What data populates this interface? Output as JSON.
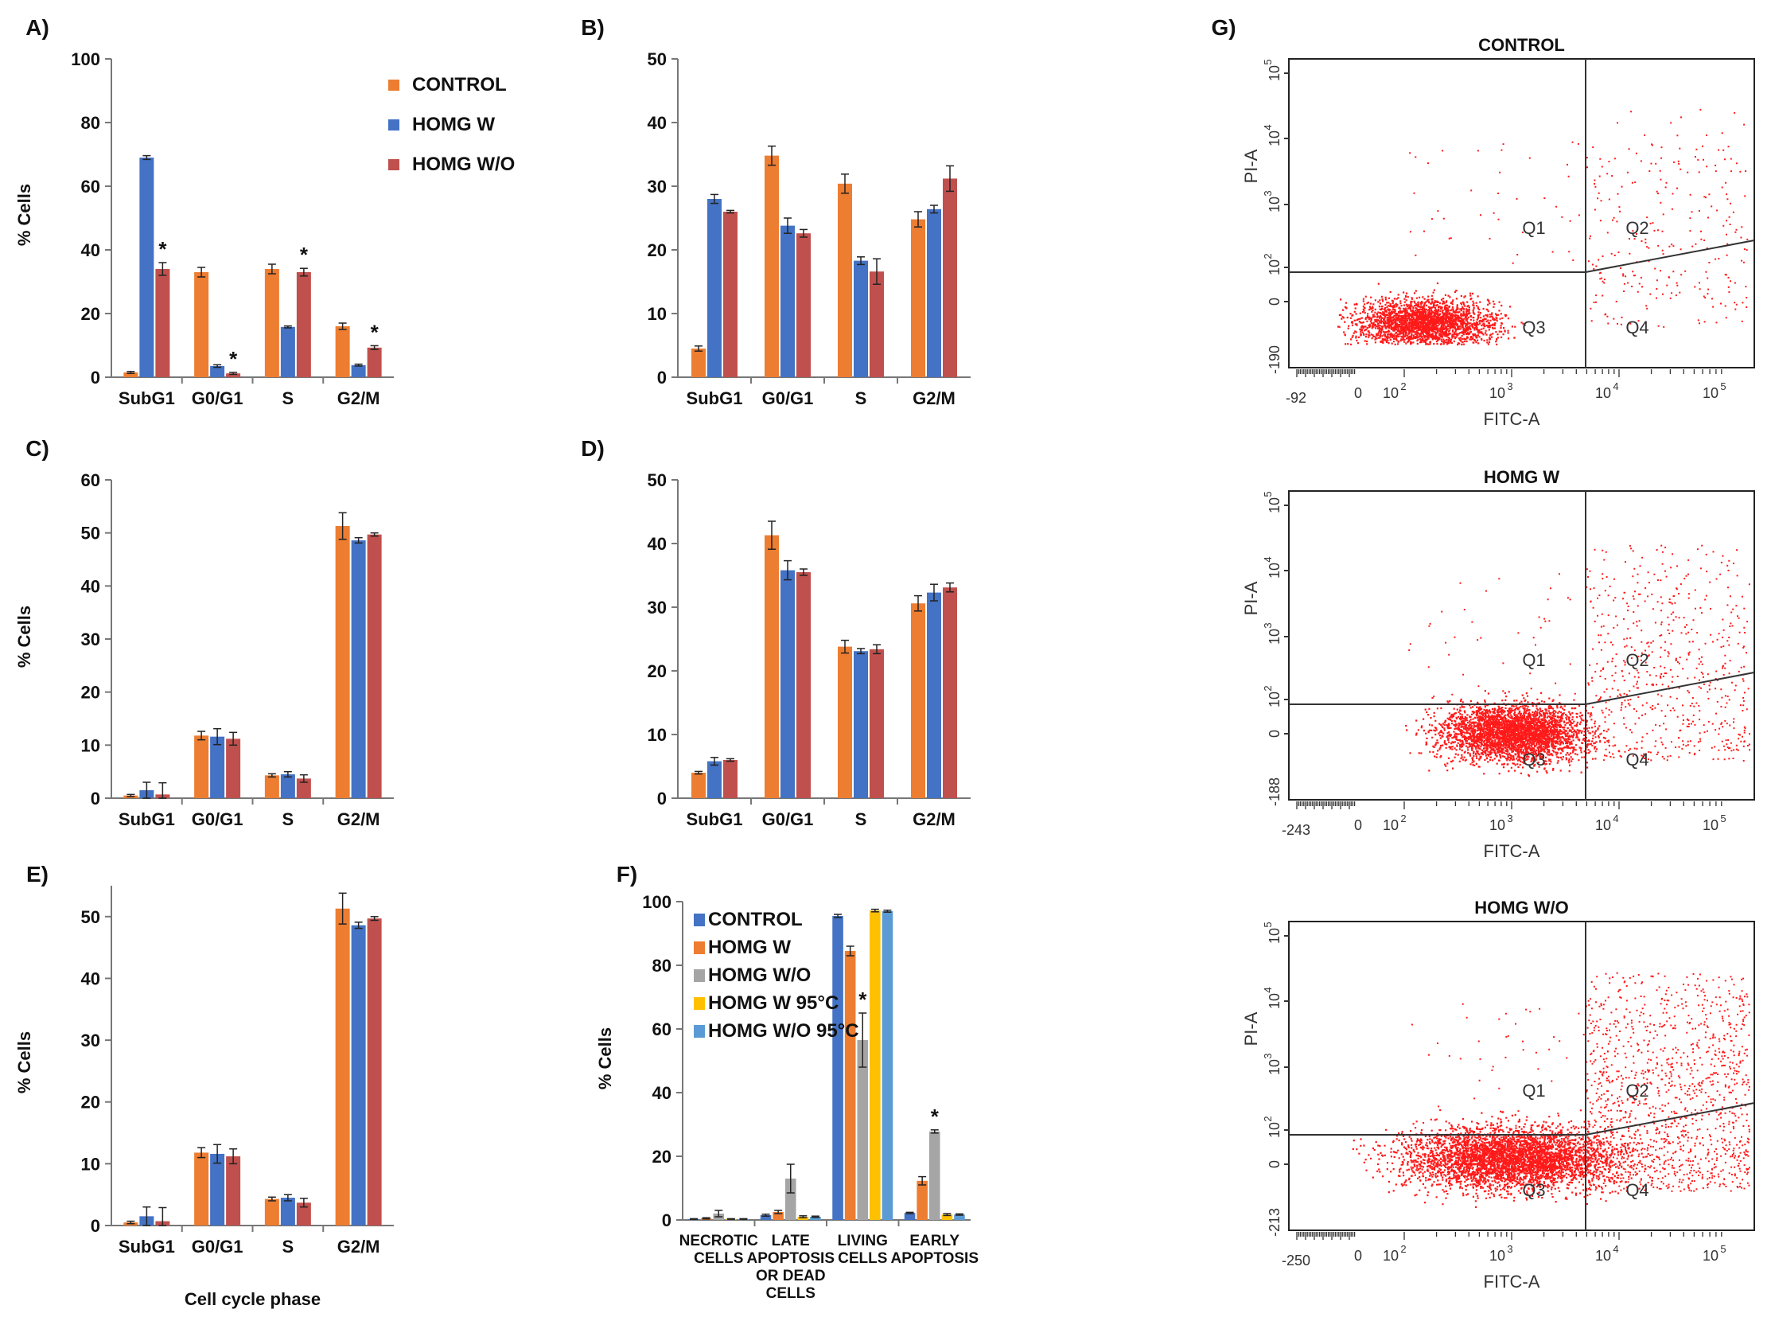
{
  "colors": {
    "control": "#ed7d31",
    "homg_w": "#4472c4",
    "homg_wo": "#c0504d",
    "f_control": "#4472c4",
    "f_homg_w": "#ed7d31",
    "f_homg_wo": "#a5a5a5",
    "f_homg_w95": "#ffc000",
    "f_homg_wo95": "#5b9bd5",
    "dots": "#ff1a1a"
  },
  "chart_data": [
    {
      "id": "A",
      "panel_label": "A)",
      "type": "bar",
      "title": "",
      "ylabel": "% Cells",
      "xlabel": "",
      "ylim": [
        0,
        100
      ],
      "yticks": [
        "0",
        "20",
        "40",
        "60",
        "80",
        "100"
      ],
      "categories": [
        "SubG1",
        "G0/G1",
        "S",
        "G2/M"
      ],
      "legend": [
        "CONTROL",
        "HOMG W",
        "HOMG W/O"
      ],
      "legend_position": "top-right",
      "series": [
        {
          "name": "CONTROL",
          "values": [
            1.5,
            33,
            34,
            16
          ],
          "errors": [
            0.3,
            1.5,
            1.5,
            1
          ]
        },
        {
          "name": "HOMG W",
          "values": [
            69,
            3.5,
            15.8,
            3.8
          ],
          "errors": [
            0.6,
            0.4,
            0.3,
            0.3
          ]
        },
        {
          "name": "HOMG W/O",
          "values": [
            34,
            1.2,
            33,
            9.3
          ],
          "errors": [
            2,
            0.3,
            1.2,
            0.6
          ]
        }
      ],
      "significance": [
        [
          2,
          0
        ],
        [
          2,
          1
        ],
        [
          2,
          2
        ],
        [
          2,
          3
        ]
      ]
    },
    {
      "id": "B",
      "panel_label": "B)",
      "type": "bar",
      "title": "",
      "ylabel": "",
      "xlabel": "",
      "ylim": [
        0,
        50
      ],
      "yticks": [
        "0",
        "10",
        "20",
        "30",
        "40",
        "50"
      ],
      "categories": [
        "SubG1",
        "G0/G1",
        "S",
        "G2/M"
      ],
      "series": [
        {
          "name": "CONTROL",
          "values": [
            4.5,
            34.8,
            30.4,
            24.8
          ],
          "errors": [
            0.4,
            1.5,
            1.5,
            1.2
          ]
        },
        {
          "name": "HOMG W",
          "values": [
            28,
            23.8,
            18.3,
            26.4
          ],
          "errors": [
            0.7,
            1.2,
            0.6,
            0.6
          ]
        },
        {
          "name": "HOMG W/O",
          "values": [
            26,
            22.6,
            16.6,
            31.2
          ],
          "errors": [
            0.2,
            0.6,
            2,
            2
          ]
        }
      ],
      "significance": []
    },
    {
      "id": "C",
      "panel_label": "C)",
      "type": "bar",
      "title": "",
      "ylabel": "% Cells",
      "xlabel": "",
      "ylim": [
        0,
        60
      ],
      "yticks": [
        "0",
        "10",
        "20",
        "30",
        "40",
        "50",
        "60"
      ],
      "categories": [
        "SubG1",
        "G0/G1",
        "S",
        "G2/M"
      ],
      "series": [
        {
          "name": "CONTROL",
          "values": [
            0.5,
            11.8,
            4.3,
            51.3
          ],
          "errors": [
            0.2,
            0.8,
            0.3,
            2.5
          ]
        },
        {
          "name": "HOMG W",
          "values": [
            1.5,
            11.6,
            4.5,
            48.6
          ],
          "errors": [
            1.5,
            1.5,
            0.5,
            0.5
          ]
        },
        {
          "name": "HOMG W/O",
          "values": [
            0.7,
            11.2,
            3.7,
            49.7
          ],
          "errors": [
            2.2,
            1.2,
            0.7,
            0.3
          ]
        }
      ],
      "significance": []
    },
    {
      "id": "D",
      "panel_label": "D)",
      "type": "bar",
      "title": "",
      "ylabel": "",
      "xlabel": "",
      "ylim": [
        0,
        50
      ],
      "yticks": [
        "0",
        "10",
        "20",
        "30",
        "40",
        "50"
      ],
      "categories": [
        "SubG1",
        "G0/G1",
        "S",
        "G2/M"
      ],
      "series": [
        {
          "name": "CONTROL",
          "values": [
            4,
            41.3,
            23.8,
            30.6
          ],
          "errors": [
            0.2,
            2.2,
            1,
            1.2
          ]
        },
        {
          "name": "HOMG W",
          "values": [
            5.8,
            35.8,
            23.1,
            32.3
          ],
          "errors": [
            0.6,
            1.5,
            0.4,
            1.3
          ]
        },
        {
          "name": "HOMG W/O",
          "values": [
            6,
            35.5,
            23.4,
            33.1
          ],
          "errors": [
            0.2,
            0.5,
            0.7,
            0.7
          ]
        }
      ],
      "significance": []
    },
    {
      "id": "E",
      "panel_label": "E)",
      "type": "bar",
      "title": "",
      "ylabel": "% Cells",
      "xlabel": "Cell cycle phase",
      "ylim": [
        0,
        55
      ],
      "yticks": [
        "0",
        "10",
        "20",
        "30",
        "40",
        "50"
      ],
      "ytick_max": 50,
      "categories": [
        "SubG1",
        "G0/G1",
        "S",
        "G2/M"
      ],
      "series": [
        {
          "name": "CONTROL",
          "values": [
            0.5,
            11.8,
            4.3,
            51.3
          ],
          "errors": [
            0.2,
            0.8,
            0.3,
            2.5
          ]
        },
        {
          "name": "HOMG W",
          "values": [
            1.5,
            11.6,
            4.5,
            48.6
          ],
          "errors": [
            1.5,
            1.5,
            0.5,
            0.5
          ]
        },
        {
          "name": "HOMG W/O",
          "values": [
            0.7,
            11.2,
            3.7,
            49.7
          ],
          "errors": [
            2.2,
            1.2,
            0.7,
            0.3
          ]
        }
      ],
      "significance": []
    },
    {
      "id": "F",
      "panel_label": "F)",
      "type": "bar",
      "title": "",
      "ylabel": "% Cells",
      "xlabel": "",
      "ylim": [
        0,
        100
      ],
      "yticks": [
        "0",
        "20",
        "40",
        "60",
        "80",
        "100"
      ],
      "categories": [
        [
          "NECROTIC",
          "CELLS"
        ],
        [
          "LATE",
          "APOPTOSIS",
          "OR DEAD",
          "CELLS"
        ],
        [
          "LIVING",
          "CELLS"
        ],
        [
          "EARLY",
          "APOPTOSIS"
        ]
      ],
      "legend": [
        "CONTROL",
        "HOMG W",
        "HOMG W/O",
        "HOMG W 95°C",
        "HOMG W/O 95°C"
      ],
      "legend_position": "top-left",
      "series": [
        {
          "name": "CONTROL",
          "values": [
            0.3,
            1.5,
            95.5,
            2.2
          ],
          "errors": [
            0.1,
            0.3,
            0.5,
            0.2
          ]
        },
        {
          "name": "HOMG W",
          "values": [
            0.5,
            2.5,
            84.5,
            12.3
          ],
          "errors": [
            0.2,
            0.5,
            1.5,
            1.3
          ]
        },
        {
          "name": "HOMG W/O",
          "values": [
            2,
            13,
            56.5,
            27.8
          ],
          "errors": [
            1,
            4.5,
            8.5,
            0.5
          ]
        },
        {
          "name": "HOMG W 95°C",
          "values": [
            0.3,
            1,
            97.2,
            1.7
          ],
          "errors": [
            0.1,
            0.3,
            0.4,
            0.3
          ]
        },
        {
          "name": "HOMG W/O 95°C",
          "values": [
            0.3,
            1,
            97,
            1.7
          ],
          "errors": [
            0.1,
            0.2,
            0.3,
            0.2
          ]
        }
      ],
      "significance": [
        [
          2,
          2
        ],
        [
          2,
          3
        ]
      ]
    }
  ],
  "flow": {
    "panel_label": "G)",
    "x_axis_label": "FITC-A",
    "y_axis_label": "PI-A",
    "quadrants": [
      "Q1",
      "Q2",
      "Q3",
      "Q4"
    ],
    "plots": [
      {
        "title": "CONTROL",
        "y_min_label": "-190",
        "x_min_label": "-92"
      },
      {
        "title": "HOMG W",
        "y_min_label": "-188",
        "x_min_label": "-243"
      },
      {
        "title": "HOMG W/O",
        "y_min_label": "-213",
        "x_min_label": "-250"
      }
    ],
    "x_ticks": [
      "0",
      "10",
      "10",
      "10",
      "10"
    ],
    "x_tick_exps": [
      "",
      "2",
      "3",
      "4",
      "5"
    ],
    "y_ticks": [
      "0",
      "10",
      "10",
      "10",
      "10"
    ],
    "y_tick_exps": [
      "",
      "2",
      "3",
      "4",
      "5"
    ]
  }
}
